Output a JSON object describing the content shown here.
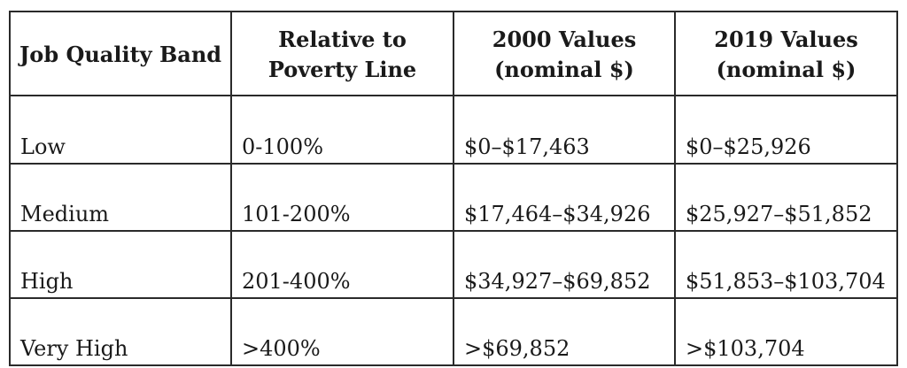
{
  "headers": [
    "Job Quality Band",
    "Relative to Poverty Line",
    "2000 Values (nominal $)",
    "2019 Values (nominal $)"
  ],
  "rows": [
    {
      "band": "Low",
      "relative": "0-100%",
      "values_2000": "$0–$17,463",
      "values_2019": "$0–$25,926"
    },
    {
      "band": "Medium",
      "relative": "101-200%",
      "values_2000": "$17,464–$34,926",
      "values_2019": "$25,927–$51,852"
    },
    {
      "band": "High",
      "relative": "201-400%",
      "values_2000": "$34,927–$69,852",
      "values_2019": "$51,853–$103,704"
    },
    {
      "band": "Very High",
      "relative": ">400%",
      "values_2000": ">$69,852",
      "values_2019": ">$103,704"
    }
  ]
}
